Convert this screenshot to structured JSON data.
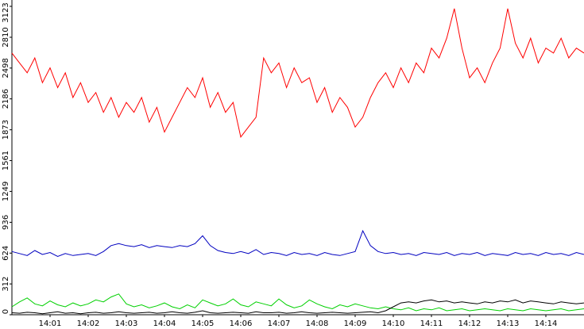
{
  "chart_data": {
    "type": "line",
    "x": [
      0,
      0.2,
      0.4,
      0.6,
      0.8,
      1,
      1.2,
      1.4,
      1.6,
      1.8,
      2,
      2.2,
      2.4,
      2.6,
      2.8,
      3,
      3.2,
      3.4,
      3.6,
      3.8,
      4,
      4.2,
      4.4,
      4.6,
      4.8,
      5,
      5.2,
      5.4,
      5.6,
      5.8,
      6,
      6.2,
      6.4,
      6.6,
      6.8,
      7,
      7.2,
      7.4,
      7.6,
      7.8,
      8,
      8.2,
      8.4,
      8.6,
      8.8,
      9,
      9.2,
      9.4,
      9.6,
      9.8,
      10,
      10.2,
      10.4,
      10.6,
      10.8,
      11,
      11.2,
      11.4,
      11.6,
      11.8,
      12,
      12.2,
      12.4,
      12.6,
      12.8,
      13,
      13.2,
      13.4,
      13.6,
      13.8,
      14,
      14.2,
      14.4,
      14.6,
      14.8,
      15
    ],
    "xlim": [
      0,
      15
    ],
    "xticks": [
      {
        "value": 1,
        "label": "14:01"
      },
      {
        "value": 2,
        "label": "14:02"
      },
      {
        "value": 3,
        "label": "14:03"
      },
      {
        "value": 4,
        "label": "14:04"
      },
      {
        "value": 5,
        "label": "14:05"
      },
      {
        "value": 6,
        "label": "14:06"
      },
      {
        "value": 7,
        "label": "14:07"
      },
      {
        "value": 8,
        "label": "14:08"
      },
      {
        "value": 9,
        "label": "14:09"
      },
      {
        "value": 10,
        "label": "14:10"
      },
      {
        "value": 11,
        "label": "14:11"
      },
      {
        "value": 12,
        "label": "14:12"
      },
      {
        "value": 13,
        "label": "14:13"
      },
      {
        "value": 14,
        "label": "14:14"
      }
    ],
    "ylim": [
      0,
      3123
    ],
    "yticks": [
      0,
      312,
      624,
      936,
      1249,
      1561,
      1873,
      2186,
      2498,
      2810,
      3123
    ],
    "series": [
      {
        "color": "#ff0000",
        "values": [
          2650,
          2550,
          2450,
          2600,
          2350,
          2500,
          2300,
          2450,
          2200,
          2350,
          2150,
          2250,
          2050,
          2200,
          2000,
          2150,
          2050,
          2200,
          1950,
          2100,
          1850,
          2000,
          2150,
          2300,
          2200,
          2400,
          2100,
          2250,
          2050,
          2150,
          1800,
          1900,
          2000,
          2600,
          2450,
          2550,
          2300,
          2500,
          2350,
          2400,
          2150,
          2300,
          2050,
          2200,
          2100,
          1900,
          2000,
          2200,
          2350,
          2450,
          2300,
          2500,
          2350,
          2550,
          2450,
          2700,
          2600,
          2800,
          3100,
          2700,
          2400,
          2500,
          2350,
          2550,
          2700,
          3100,
          2750,
          2600,
          2800,
          2550,
          2700,
          2650,
          2800,
          2600,
          2700,
          2650
        ]
      },
      {
        "color": "#0000c0",
        "values": [
          640,
          620,
          600,
          650,
          610,
          630,
          590,
          620,
          600,
          610,
          620,
          600,
          640,
          700,
          720,
          700,
          690,
          710,
          680,
          700,
          690,
          680,
          700,
          690,
          720,
          800,
          700,
          650,
          630,
          620,
          640,
          620,
          660,
          610,
          630,
          620,
          600,
          630,
          610,
          620,
          600,
          630,
          610,
          600,
          620,
          640,
          850,
          700,
          640,
          620,
          630,
          610,
          620,
          600,
          630,
          620,
          610,
          630,
          600,
          620,
          610,
          630,
          600,
          620,
          610,
          600,
          630,
          610,
          620,
          600,
          630,
          610,
          620,
          600,
          630,
          610
        ]
      },
      {
        "color": "#00d000",
        "values": [
          80,
          130,
          170,
          110,
          90,
          140,
          100,
          80,
          120,
          90,
          110,
          150,
          130,
          180,
          210,
          110,
          80,
          100,
          70,
          90,
          120,
          80,
          60,
          100,
          70,
          150,
          120,
          90,
          110,
          160,
          100,
          80,
          130,
          110,
          90,
          160,
          100,
          70,
          90,
          150,
          110,
          80,
          60,
          100,
          80,
          110,
          90,
          70,
          60,
          80,
          60,
          50,
          70,
          40,
          60,
          50,
          70,
          40,
          50,
          60,
          40,
          50,
          60,
          50,
          40,
          60,
          50,
          40,
          60,
          50,
          40,
          50,
          60,
          40,
          50,
          60
        ]
      },
      {
        "color": "#000000",
        "values": [
          20,
          15,
          25,
          20,
          10,
          20,
          30,
          15,
          20,
          10,
          20,
          25,
          15,
          20,
          30,
          20,
          15,
          20,
          25,
          15,
          20,
          30,
          20,
          15,
          25,
          40,
          20,
          15,
          20,
          25,
          20,
          15,
          30,
          20,
          20,
          25,
          15,
          20,
          30,
          20,
          15,
          20,
          25,
          20,
          15,
          20,
          25,
          30,
          20,
          40,
          80,
          120,
          130,
          120,
          140,
          150,
          130,
          140,
          120,
          130,
          120,
          110,
          130,
          120,
          140,
          130,
          150,
          120,
          140,
          130,
          120,
          110,
          130,
          120,
          110,
          120
        ]
      }
    ]
  }
}
